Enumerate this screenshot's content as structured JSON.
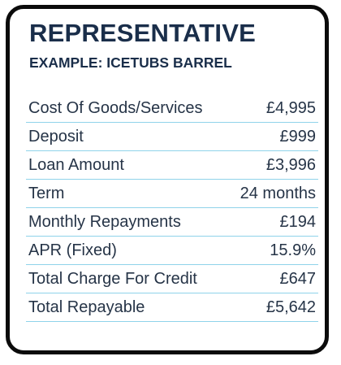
{
  "heading": {
    "title": "REPRESENTATIVE",
    "subtitle": "EXAMPLE: ICETUBS BARREL"
  },
  "rows": [
    {
      "label": "Cost Of Goods/Services",
      "value": "£4,995"
    },
    {
      "label": "Deposit",
      "value": "£999"
    },
    {
      "label": "Loan Amount",
      "value": "£3,996"
    },
    {
      "label": "Term",
      "value": "24 months"
    },
    {
      "label": "Monthly Repayments",
      "value": "£194"
    },
    {
      "label": "APR (Fixed)",
      "value": "15.9%"
    },
    {
      "label": "Total Charge For Credit",
      "value": "£647"
    },
    {
      "label": "Total Repayable",
      "value": "£5,642"
    }
  ],
  "colors": {
    "title": "#1a2e4a",
    "text": "#263447",
    "divider": "#8fd3ea",
    "border": "#0b0b0b"
  }
}
